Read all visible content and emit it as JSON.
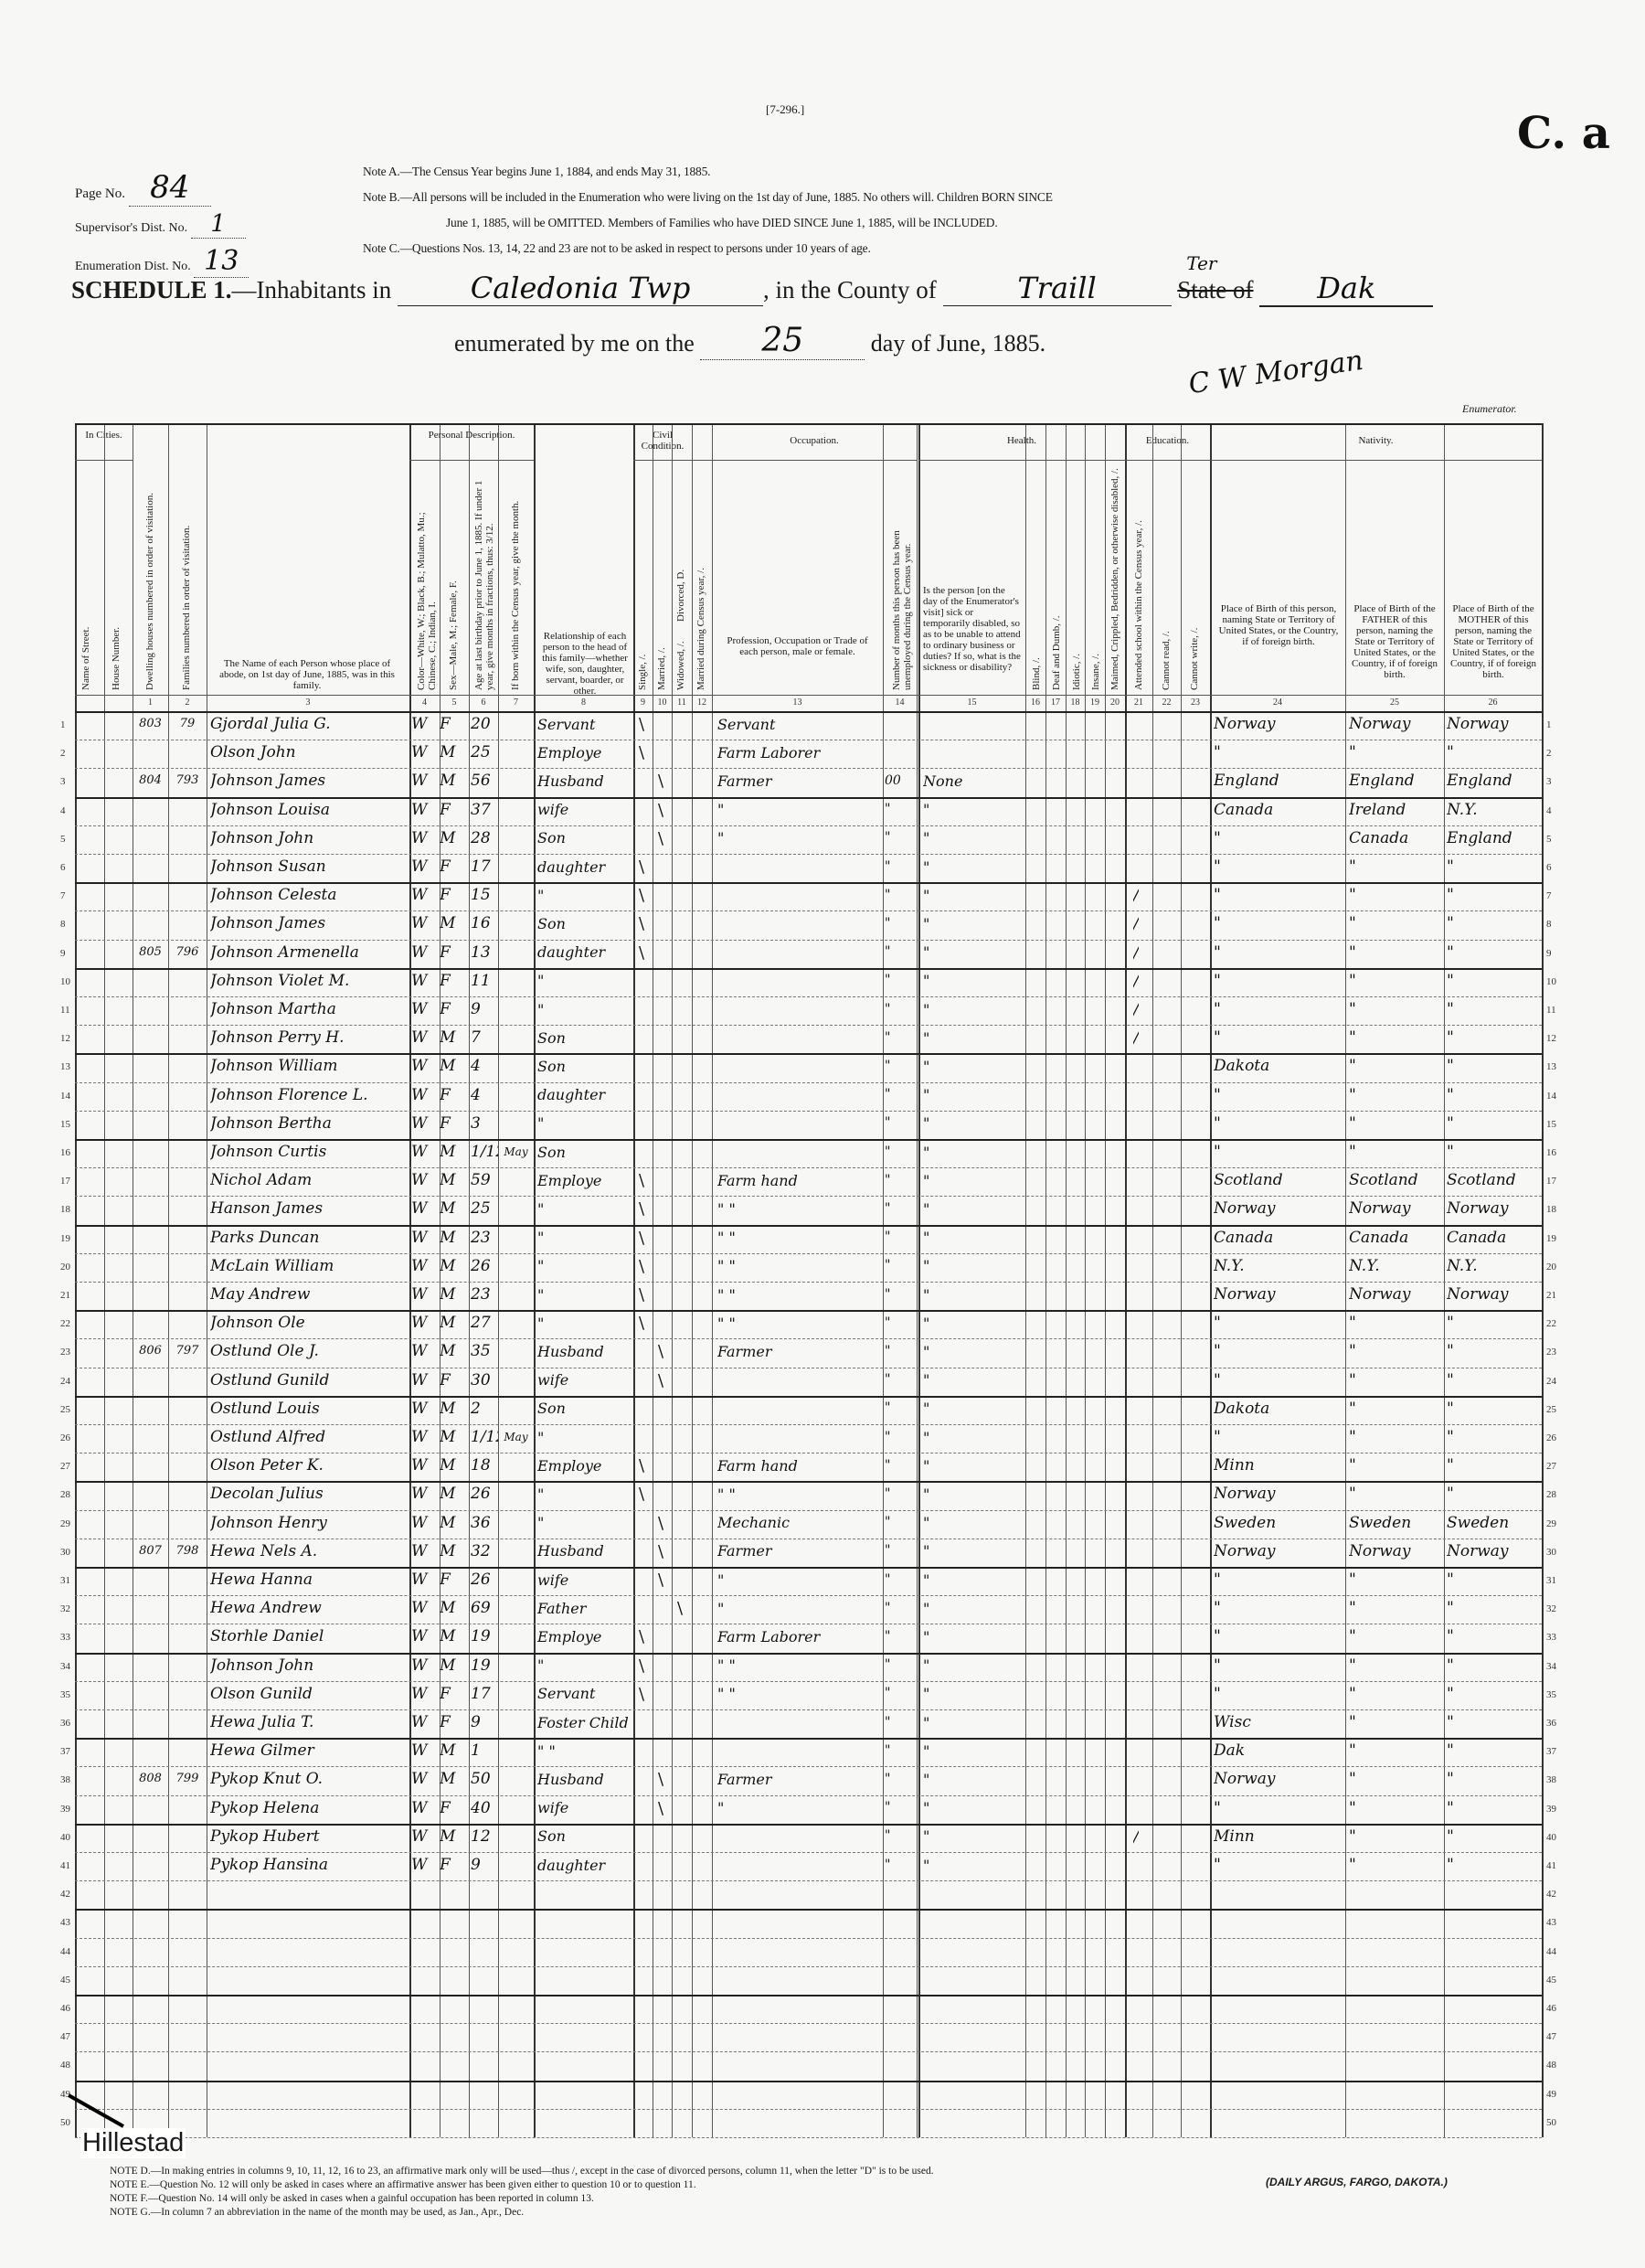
{
  "form_number": "[7-296.]",
  "corner_mark": "C. a",
  "page_no": {
    "label": "Page No.",
    "value": "84"
  },
  "supervisor_dist": {
    "label": "Supervisor's Dist. No.",
    "value": "1"
  },
  "enumeration_dist": {
    "label": "Enumeration Dist. No.",
    "value": "13"
  },
  "notes_top": {
    "a": "Note A.—The Census Year begins June 1, 1884, and ends May 31, 1885.",
    "b1": "Note B.—All persons will be included in the Enumeration who were living on the 1st day of June, 1885.  No others will.  Children BORN SINCE",
    "b2": "June 1, 1885, will be OMITTED.  Members of Families who have DIED SINCE June 1, 1885, will be INCLUDED.",
    "c": "Note C.—Questions Nos. 13, 14, 22 and 23 are not to be asked in respect to persons under 10 years of age."
  },
  "schedule": {
    "title": "SCHEDULE 1.",
    "inhabitants_label": "—Inhabitants in",
    "place": "Caledonia Twp",
    "county_label": "in the County of",
    "county": "Traill",
    "territory_note": "Ter",
    "state_label": "State of",
    "state": "Dak",
    "enumerated_label": "enumerated by me on the",
    "day": "25",
    "month_year": "day of June, 1885.",
    "enumerator_signature": "C W Morgan",
    "enumerator_label": "Enumerator."
  },
  "headers": {
    "in_cities": "In Cities.",
    "street": "Name of Street.",
    "house": "House Number.",
    "dwelling": "Dwelling houses numbered in order of visitation.",
    "family": "Families numbered in order of visitation.",
    "name": "The Name of each Person whose place of abode, on 1st day of June, 1885, was in this family.",
    "personal": "Personal Description.",
    "color": "Color—White, W.; Black, B.; Mulatto, Mu.; Chinese, C.; Indian, I.",
    "sex": "Sex—Male, M.; Female, F.",
    "age": "Age at last birthday prior to June 1, 1885. If under 1 year, give months in fractions, thus: 3/12.",
    "born_month": "If born within the Census year, give the month.",
    "relationship": "Relationship of each person to the head of this family—whether wife, son, daughter, servant, boarder, or other.",
    "civil": "Civil Condition.",
    "single": "Single, /.",
    "married": "Married, /.",
    "widowed": "Widowed, /.",
    "divorced": "Divorced, D.",
    "married_year": "Married during Census year, /.",
    "occupation": "Occupation.",
    "trade": "Profession, Occupation or Trade of each person, male or female.",
    "unemployed": "Number of months this person has been unemployed during the Census year.",
    "health": "Health.",
    "sick": "Is the person [on the day of the Enumerator's visit] sick or temporarily disabled, so as to be unable to attend to ordinary business or duties? If so, what is the sickness or disability?",
    "blind": "Blind, /.",
    "deaf": "Deaf and Dumb, /.",
    "idiotic": "Idiotic, /.",
    "insane": "Insane, /.",
    "maimed": "Maimed, Crippled, Bedridden, or otherwise disabled, /.",
    "education": "Education.",
    "school": "Attended school within the Census year, /.",
    "read": "Cannot read, /.",
    "write": "Cannot write, /.",
    "nativity": "Nativity.",
    "birth": "Place of Birth of this person, naming State or Territory of United States, or the Country, if of foreign birth.",
    "father": "Place of Birth of the FATHER of this person, naming the State or Territory of United States, or the Country, if of foreign birth.",
    "mother": "Place of Birth of the MOTHER of this person, naming the State or Territory of United States, or the Country, if of foreign birth."
  },
  "column_numbers": [
    "1",
    "2",
    "3",
    "4",
    "5",
    "6",
    "7",
    "8",
    "9",
    "10",
    "11",
    "12",
    "13",
    "14",
    "15",
    "16",
    "17",
    "18",
    "19",
    "20",
    "21",
    "22",
    "23",
    "24",
    "25",
    "26"
  ],
  "rows": [
    {
      "dwelling": "803",
      "family": "79",
      "name": "Gjordal Julia G.",
      "color": "W",
      "sex": "F",
      "age": "20",
      "month": "",
      "relation": "Servant",
      "civil": "single",
      "occupation": "Servant",
      "unemployed": "",
      "health": "",
      "school": "",
      "birth": "Norway",
      "father": "Norway",
      "mother": "Norway"
    },
    {
      "dwelling": "",
      "family": "",
      "name": "Olson John",
      "color": "W",
      "sex": "M",
      "age": "25",
      "month": "",
      "relation": "Employe",
      "civil": "single",
      "occupation": "Farm Laborer",
      "unemployed": "",
      "health": "",
      "school": "",
      "birth": "\"",
      "father": "\"",
      "mother": "\""
    },
    {
      "dwelling": "804",
      "family": "793",
      "name": "Johnson James",
      "color": "W",
      "sex": "M",
      "age": "56",
      "month": "",
      "relation": "Husband",
      "civil": "married",
      "occupation": "Farmer",
      "unemployed": "00",
      "health": "None",
      "school": "",
      "birth": "England",
      "father": "England",
      "mother": "England"
    },
    {
      "dwelling": "",
      "family": "",
      "name": "Johnson Louisa",
      "color": "W",
      "sex": "F",
      "age": "37",
      "month": "",
      "relation": "wife",
      "civil": "married",
      "occupation": "\"",
      "unemployed": "\"",
      "health": "\"",
      "school": "",
      "birth": "Canada",
      "father": "Ireland",
      "mother": "N.Y."
    },
    {
      "dwelling": "",
      "family": "",
      "name": "Johnson John",
      "color": "W",
      "sex": "M",
      "age": "28",
      "month": "",
      "relation": "Son",
      "civil": "married",
      "occupation": "\"",
      "unemployed": "\"",
      "health": "\"",
      "school": "",
      "birth": "\"",
      "father": "Canada",
      "mother": "England"
    },
    {
      "dwelling": "",
      "family": "",
      "name": "Johnson Susan",
      "color": "W",
      "sex": "F",
      "age": "17",
      "month": "",
      "relation": "daughter",
      "civil": "single",
      "occupation": "",
      "unemployed": "\"",
      "health": "\"",
      "school": "",
      "birth": "\"",
      "father": "\"",
      "mother": "\""
    },
    {
      "dwelling": "",
      "family": "",
      "name": "Johnson Celesta",
      "color": "W",
      "sex": "F",
      "age": "15",
      "month": "",
      "relation": "\"",
      "civil": "single",
      "occupation": "",
      "unemployed": "\"",
      "health": "\"",
      "school": "/",
      "birth": "\"",
      "father": "\"",
      "mother": "\""
    },
    {
      "dwelling": "",
      "family": "",
      "name": "Johnson James",
      "color": "W",
      "sex": "M",
      "age": "16",
      "month": "",
      "relation": "Son",
      "civil": "single",
      "occupation": "",
      "unemployed": "\"",
      "health": "\"",
      "school": "/",
      "birth": "\"",
      "father": "\"",
      "mother": "\""
    },
    {
      "dwelling": "805",
      "family": "796",
      "name": "Johnson Armenella",
      "color": "W",
      "sex": "F",
      "age": "13",
      "month": "",
      "relation": "daughter",
      "civil": "single",
      "occupation": "",
      "unemployed": "\"",
      "health": "\"",
      "school": "/",
      "birth": "\"",
      "father": "\"",
      "mother": "\""
    },
    {
      "dwelling": "",
      "family": "",
      "name": "Johnson Violet M.",
      "color": "W",
      "sex": "F",
      "age": "11",
      "month": "",
      "relation": "\"",
      "civil": "",
      "occupation": "",
      "unemployed": "\"",
      "health": "\"",
      "school": "/",
      "birth": "\"",
      "father": "\"",
      "mother": "\""
    },
    {
      "dwelling": "",
      "family": "",
      "name": "Johnson Martha",
      "color": "W",
      "sex": "F",
      "age": "9",
      "month": "",
      "relation": "\"",
      "civil": "",
      "occupation": "",
      "unemployed": "\"",
      "health": "\"",
      "school": "/",
      "birth": "\"",
      "father": "\"",
      "mother": "\""
    },
    {
      "dwelling": "",
      "family": "",
      "name": "Johnson Perry H.",
      "color": "W",
      "sex": "M",
      "age": "7",
      "month": "",
      "relation": "Son",
      "civil": "",
      "occupation": "",
      "unemployed": "\"",
      "health": "\"",
      "school": "/",
      "birth": "\"",
      "father": "\"",
      "mother": "\""
    },
    {
      "dwelling": "",
      "family": "",
      "name": "Johnson William",
      "color": "W",
      "sex": "M",
      "age": "4",
      "month": "",
      "relation": "Son",
      "civil": "",
      "occupation": "",
      "unemployed": "\"",
      "health": "\"",
      "school": "",
      "birth": "Dakota",
      "father": "\"",
      "mother": "\""
    },
    {
      "dwelling": "",
      "family": "",
      "name": "Johnson Florence L.",
      "color": "W",
      "sex": "F",
      "age": "4",
      "month": "",
      "relation": "daughter",
      "civil": "",
      "occupation": "",
      "unemployed": "\"",
      "health": "\"",
      "school": "",
      "birth": "\"",
      "father": "\"",
      "mother": "\""
    },
    {
      "dwelling": "",
      "family": "",
      "name": "Johnson Bertha",
      "color": "W",
      "sex": "F",
      "age": "3",
      "month": "",
      "relation": "\"",
      "civil": "",
      "occupation": "",
      "unemployed": "\"",
      "health": "\"",
      "school": "",
      "birth": "\"",
      "father": "\"",
      "mother": "\""
    },
    {
      "dwelling": "",
      "family": "",
      "name": "Johnson Curtis",
      "color": "W",
      "sex": "M",
      "age": "1/12",
      "month": "May",
      "relation": "Son",
      "civil": "",
      "occupation": "",
      "unemployed": "\"",
      "health": "\"",
      "school": "",
      "birth": "\"",
      "father": "\"",
      "mother": "\""
    },
    {
      "dwelling": "",
      "family": "",
      "name": "Nichol Adam",
      "color": "W",
      "sex": "M",
      "age": "59",
      "month": "",
      "relation": "Employe",
      "civil": "single",
      "occupation": "Farm hand",
      "unemployed": "\"",
      "health": "\"",
      "school": "",
      "birth": "Scotland",
      "father": "Scotland",
      "mother": "Scotland"
    },
    {
      "dwelling": "",
      "family": "",
      "name": "Hanson James",
      "color": "W",
      "sex": "M",
      "age": "25",
      "month": "",
      "relation": "\"",
      "civil": "single",
      "occupation": "\"   \"",
      "unemployed": "\"",
      "health": "\"",
      "school": "",
      "birth": "Norway",
      "father": "Norway",
      "mother": "Norway"
    },
    {
      "dwelling": "",
      "family": "",
      "name": "Parks Duncan",
      "color": "W",
      "sex": "M",
      "age": "23",
      "month": "",
      "relation": "\"",
      "civil": "single",
      "occupation": "\"   \"",
      "unemployed": "\"",
      "health": "\"",
      "school": "",
      "birth": "Canada",
      "father": "Canada",
      "mother": "Canada"
    },
    {
      "dwelling": "",
      "family": "",
      "name": "McLain William",
      "color": "W",
      "sex": "M",
      "age": "26",
      "month": "",
      "relation": "\"",
      "civil": "single",
      "occupation": "\"   \"",
      "unemployed": "\"",
      "health": "\"",
      "school": "",
      "birth": "N.Y.",
      "father": "N.Y.",
      "mother": "N.Y."
    },
    {
      "dwelling": "",
      "family": "",
      "name": "May Andrew",
      "color": "W",
      "sex": "M",
      "age": "23",
      "month": "",
      "relation": "\"",
      "civil": "single",
      "occupation": "\"   \"",
      "unemployed": "\"",
      "health": "\"",
      "school": "",
      "birth": "Norway",
      "father": "Norway",
      "mother": "Norway"
    },
    {
      "dwelling": "",
      "family": "",
      "name": "Johnson Ole",
      "color": "W",
      "sex": "M",
      "age": "27",
      "month": "",
      "relation": "\"",
      "civil": "single",
      "occupation": "\"   \"",
      "unemployed": "\"",
      "health": "\"",
      "school": "",
      "birth": "\"",
      "father": "\"",
      "mother": "\""
    },
    {
      "dwelling": "806",
      "family": "797",
      "name": "Ostlund Ole J.",
      "color": "W",
      "sex": "M",
      "age": "35",
      "month": "",
      "relation": "Husband",
      "civil": "married",
      "occupation": "Farmer",
      "unemployed": "\"",
      "health": "\"",
      "school": "",
      "birth": "\"",
      "father": "\"",
      "mother": "\""
    },
    {
      "dwelling": "",
      "family": "",
      "name": "Ostlund Gunild",
      "color": "W",
      "sex": "F",
      "age": "30",
      "month": "",
      "relation": "wife",
      "civil": "married",
      "occupation": "",
      "unemployed": "\"",
      "health": "\"",
      "school": "",
      "birth": "\"",
      "father": "\"",
      "mother": "\""
    },
    {
      "dwelling": "",
      "family": "",
      "name": "Ostlund Louis",
      "color": "W",
      "sex": "M",
      "age": "2",
      "month": "",
      "relation": "Son",
      "civil": "",
      "occupation": "",
      "unemployed": "\"",
      "health": "\"",
      "school": "",
      "birth": "Dakota",
      "father": "\"",
      "mother": "\""
    },
    {
      "dwelling": "",
      "family": "",
      "name": "Ostlund Alfred",
      "color": "W",
      "sex": "M",
      "age": "1/12",
      "month": "May",
      "relation": "\"",
      "civil": "",
      "occupation": "",
      "unemployed": "\"",
      "health": "\"",
      "school": "",
      "birth": "\"",
      "father": "\"",
      "mother": "\""
    },
    {
      "dwelling": "",
      "family": "",
      "name": "Olson Peter K.",
      "color": "W",
      "sex": "M",
      "age": "18",
      "month": "",
      "relation": "Employe",
      "civil": "single",
      "occupation": "Farm hand",
      "unemployed": "\"",
      "health": "\"",
      "school": "",
      "birth": "Minn",
      "father": "\"",
      "mother": "\""
    },
    {
      "dwelling": "",
      "family": "",
      "name": "Decolan Julius",
      "color": "W",
      "sex": "M",
      "age": "26",
      "month": "",
      "relation": "\"",
      "civil": "single",
      "occupation": "\"   \"",
      "unemployed": "\"",
      "health": "\"",
      "school": "",
      "birth": "Norway",
      "father": "\"",
      "mother": "\""
    },
    {
      "dwelling": "",
      "family": "",
      "name": "Johnson Henry",
      "color": "W",
      "sex": "M",
      "age": "36",
      "month": "",
      "relation": "\"",
      "civil": "married",
      "occupation": "Mechanic",
      "unemployed": "\"",
      "health": "\"",
      "school": "",
      "birth": "Sweden",
      "father": "Sweden",
      "mother": "Sweden"
    },
    {
      "dwelling": "807",
      "family": "798",
      "name": "Hewa Nels A.",
      "color": "W",
      "sex": "M",
      "age": "32",
      "month": "",
      "relation": "Husband",
      "civil": "married",
      "occupation": "Farmer",
      "unemployed": "\"",
      "health": "\"",
      "school": "",
      "birth": "Norway",
      "father": "Norway",
      "mother": "Norway"
    },
    {
      "dwelling": "",
      "family": "",
      "name": "Hewa Hanna",
      "color": "W",
      "sex": "F",
      "age": "26",
      "month": "",
      "relation": "wife",
      "civil": "married",
      "occupation": "\"",
      "unemployed": "\"",
      "health": "\"",
      "school": "",
      "birth": "\"",
      "father": "\"",
      "mother": "\""
    },
    {
      "dwelling": "",
      "family": "",
      "name": "Hewa Andrew",
      "color": "W",
      "sex": "M",
      "age": "69",
      "month": "",
      "relation": "Father",
      "civil": "widowed",
      "occupation": "\"",
      "unemployed": "\"",
      "health": "\"",
      "school": "",
      "birth": "\"",
      "father": "\"",
      "mother": "\""
    },
    {
      "dwelling": "",
      "family": "",
      "name": "Storhle Daniel",
      "color": "W",
      "sex": "M",
      "age": "19",
      "month": "",
      "relation": "Employe",
      "civil": "single",
      "occupation": "Farm Laborer",
      "unemployed": "\"",
      "health": "\"",
      "school": "",
      "birth": "\"",
      "father": "\"",
      "mother": "\""
    },
    {
      "dwelling": "",
      "family": "",
      "name": "Johnson John",
      "color": "W",
      "sex": "M",
      "age": "19",
      "month": "",
      "relation": "\"",
      "civil": "single",
      "occupation": "\"   \"",
      "unemployed": "\"",
      "health": "\"",
      "school": "",
      "birth": "\"",
      "father": "\"",
      "mother": "\""
    },
    {
      "dwelling": "",
      "family": "",
      "name": "Olson Gunild",
      "color": "W",
      "sex": "F",
      "age": "17",
      "month": "",
      "relation": "Servant",
      "civil": "single",
      "occupation": "\"   \"",
      "unemployed": "\"",
      "health": "\"",
      "school": "",
      "birth": "\"",
      "father": "\"",
      "mother": "\""
    },
    {
      "dwelling": "",
      "family": "",
      "name": "Hewa Julia T.",
      "color": "W",
      "sex": "F",
      "age": "9",
      "month": "",
      "relation": "Foster Child",
      "civil": "",
      "occupation": "",
      "unemployed": "\"",
      "health": "\"",
      "school": "",
      "birth": "Wisc",
      "father": "\"",
      "mother": "\""
    },
    {
      "dwelling": "",
      "family": "",
      "name": "Hewa Gilmer",
      "color": "W",
      "sex": "M",
      "age": "1",
      "month": "",
      "relation": "\"   \"",
      "civil": "",
      "occupation": "",
      "unemployed": "\"",
      "health": "\"",
      "school": "",
      "birth": "Dak",
      "father": "\"",
      "mother": "\""
    },
    {
      "dwelling": "808",
      "family": "799",
      "name": "Pykop Knut O.",
      "color": "W",
      "sex": "M",
      "age": "50",
      "month": "",
      "relation": "Husband",
      "civil": "married",
      "occupation": "Farmer",
      "unemployed": "\"",
      "health": "\"",
      "school": "",
      "birth": "Norway",
      "father": "\"",
      "mother": "\""
    },
    {
      "dwelling": "",
      "family": "",
      "name": "Pykop Helena",
      "color": "W",
      "sex": "F",
      "age": "40",
      "month": "",
      "relation": "wife",
      "civil": "married",
      "occupation": "\"",
      "unemployed": "\"",
      "health": "\"",
      "school": "",
      "birth": "\"",
      "father": "\"",
      "mother": "\""
    },
    {
      "dwelling": "",
      "family": "",
      "name": "Pykop Hubert",
      "color": "W",
      "sex": "M",
      "age": "12",
      "month": "",
      "relation": "Son",
      "civil": "",
      "occupation": "",
      "unemployed": "\"",
      "health": "\"",
      "school": "/",
      "birth": "Minn",
      "father": "\"",
      "mother": "\""
    },
    {
      "dwelling": "",
      "family": "",
      "name": "Pykop Hansina",
      "color": "W",
      "sex": "F",
      "age": "9",
      "month": "",
      "relation": "daughter",
      "civil": "",
      "occupation": "",
      "unemployed": "\"",
      "health": "\"",
      "school": "",
      "birth": "\"",
      "father": "\"",
      "mother": "\""
    }
  ],
  "total_lines": 50,
  "annotation": {
    "label": "Hillestad",
    "color": "#000000"
  },
  "notes_bottom": {
    "d": "NOTE D.—In making entries in columns 9, 10, 11, 12, 16 to 23, an affirmative mark only will be used—thus /, except in the case of divorced persons, column 11, when the letter \"D\" is to be used.",
    "e": "NOTE E.—Question No. 12 will only be asked in cases where an affirmative answer has been given either to question 10 or to question 11.",
    "f": "NOTE F.—Question No. 14 will only be asked in cases when a gainful occupation has been reported in column 13.",
    "g": "NOTE G.—In column 7 an abbreviation in the name of the month may be used, as Jan., Apr., Dec."
  },
  "printer": "(DAILY ARGUS, FARGO, DAKOTA.)"
}
